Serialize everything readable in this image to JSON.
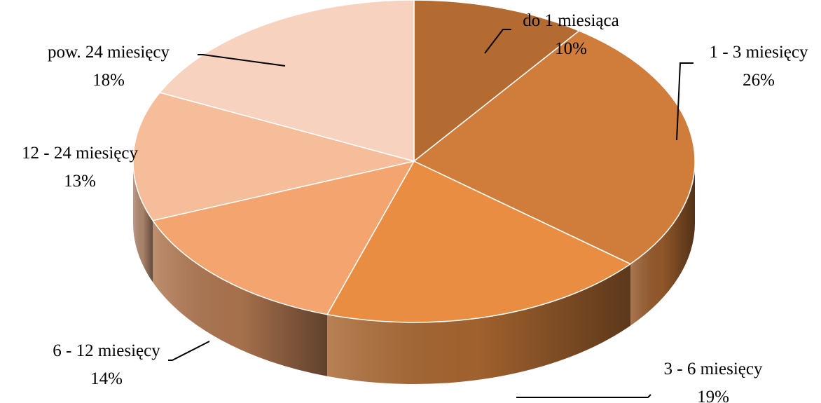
{
  "chart_data": {
    "type": "pie",
    "title": "",
    "slices": [
      {
        "name": "do 1 miesiąca",
        "value": 10,
        "value_label": "10%",
        "color": "#B46B32"
      },
      {
        "name": "1 - 3 miesięcy",
        "value": 26,
        "value_label": "26%",
        "color": "#D07D3C"
      },
      {
        "name": "3 - 6 miesięcy",
        "value": 19,
        "value_label": "19%",
        "color": "#E98D42"
      },
      {
        "name": "6 - 12 miesięcy",
        "value": 14,
        "value_label": "14%",
        "color": "#F3A46F"
      },
      {
        "name": "12 - 24 miesięcy",
        "value": 13,
        "value_label": "13%",
        "color": "#F6BD9A"
      },
      {
        "name": "pow. 24 miesięcy",
        "value": 18,
        "value_label": "18%",
        "color": "#F7D2BF"
      }
    ],
    "legend": "none",
    "data_labels": "outside with leader lines"
  }
}
